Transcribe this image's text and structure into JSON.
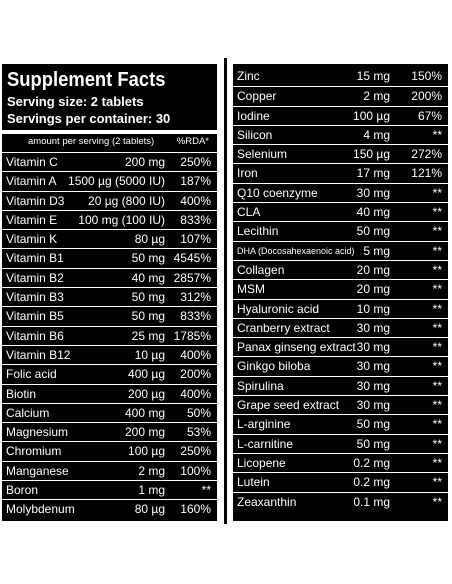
{
  "facts": {
    "title": "Supplement Facts",
    "serving_size": "Serving size: 2 tablets",
    "servings_per_container": "Servings per container: 30",
    "header_amount": "amount per serving (2 tablets)",
    "header_rda": "%RDA*"
  },
  "left_rows": [
    {
      "name": "Vitamin C",
      "amount": "200 mg",
      "rda": "250%"
    },
    {
      "name": "Vitamin A",
      "amount": "1500 µg (5000 IU)",
      "rda": "187%"
    },
    {
      "name": "Vitamin D3",
      "amount": "20 µg (800 IU)",
      "rda": "400%"
    },
    {
      "name": "Vitamin E",
      "amount": "100 mg (100 IU)",
      "rda": "833%"
    },
    {
      "name": "Vitamin K",
      "amount": "80 µg",
      "rda": "107%"
    },
    {
      "name": "Vitamin B1",
      "amount": "50 mg",
      "rda": "4545%"
    },
    {
      "name": "Vitamin B2",
      "amount": "40 mg",
      "rda": "2857%"
    },
    {
      "name": "Vitamin B3",
      "amount": "50 mg",
      "rda": "312%"
    },
    {
      "name": "Vitamin B5",
      "amount": "50 mg",
      "rda": "833%"
    },
    {
      "name": "Vitamin B6",
      "amount": "25 mg",
      "rda": "1785%"
    },
    {
      "name": "Vitamin B12",
      "amount": "10 µg",
      "rda": "400%"
    },
    {
      "name": "Folic acid",
      "amount": "400 µg",
      "rda": "200%"
    },
    {
      "name": "Biotin",
      "amount": "200 µg",
      "rda": "400%"
    },
    {
      "name": "Calcium",
      "amount": "400 mg",
      "rda": "50%"
    },
    {
      "name": "Magnesium",
      "amount": "200 mg",
      "rda": "53%"
    },
    {
      "name": "Chromium",
      "amount": "100 µg",
      "rda": "250%"
    },
    {
      "name": "Manganese",
      "amount": "2 mg",
      "rda": "100%"
    },
    {
      "name": "Boron",
      "amount": "1 mg",
      "rda": "**"
    },
    {
      "name": "Molybdenum",
      "amount": "80 µg",
      "rda": "160%"
    }
  ],
  "right_rows": [
    {
      "name": "Zinc",
      "amount": "15 mg",
      "rda": "150%"
    },
    {
      "name": "Copper",
      "amount": "2 mg",
      "rda": "200%"
    },
    {
      "name": "Iodine",
      "amount": "100 µg",
      "rda": "67%"
    },
    {
      "name": "Silicon",
      "amount": "4 mg",
      "rda": "**"
    },
    {
      "name": "Selenium",
      "amount": "150 µg",
      "rda": "272%"
    },
    {
      "name": "Iron",
      "amount": "17 mg",
      "rda": "121%"
    },
    {
      "name": "Q10 coenzyme",
      "amount": "30 mg",
      "rda": "**"
    },
    {
      "name": "CLA",
      "amount": "40 mg",
      "rda": "**"
    },
    {
      "name": "Lecithin",
      "amount": "50 mg",
      "rda": "**"
    },
    {
      "name": "DHA (Docosahexaenoic acid)",
      "amount": "5 mg",
      "rda": "**"
    },
    {
      "name": "Collagen",
      "amount": "20 mg",
      "rda": "**"
    },
    {
      "name": "MSM",
      "amount": "20 mg",
      "rda": "**"
    },
    {
      "name": "Hyaluronic acid",
      "amount": "10 mg",
      "rda": "**"
    },
    {
      "name": "Cranberry extract",
      "amount": "30 mg",
      "rda": "**"
    },
    {
      "name": "Panax ginseng extract",
      "amount": "30 mg",
      "rda": "**"
    },
    {
      "name": "Ginkgo biloba",
      "amount": "30 mg",
      "rda": "**"
    },
    {
      "name": "Spirulina",
      "amount": "30 mg",
      "rda": "**"
    },
    {
      "name": "Grape seed extract",
      "amount": "30 mg",
      "rda": "**"
    },
    {
      "name": "L-arginine",
      "amount": "50 mg",
      "rda": "**"
    },
    {
      "name": "L-carnitine",
      "amount": "50 mg",
      "rda": "**"
    },
    {
      "name": "Licopene",
      "amount": "0.2 mg",
      "rda": "**"
    },
    {
      "name": "Lutein",
      "amount": "0.2 mg",
      "rda": "**"
    },
    {
      "name": "Zeaxanthin",
      "amount": "0.1 mg",
      "rda": "**"
    }
  ]
}
